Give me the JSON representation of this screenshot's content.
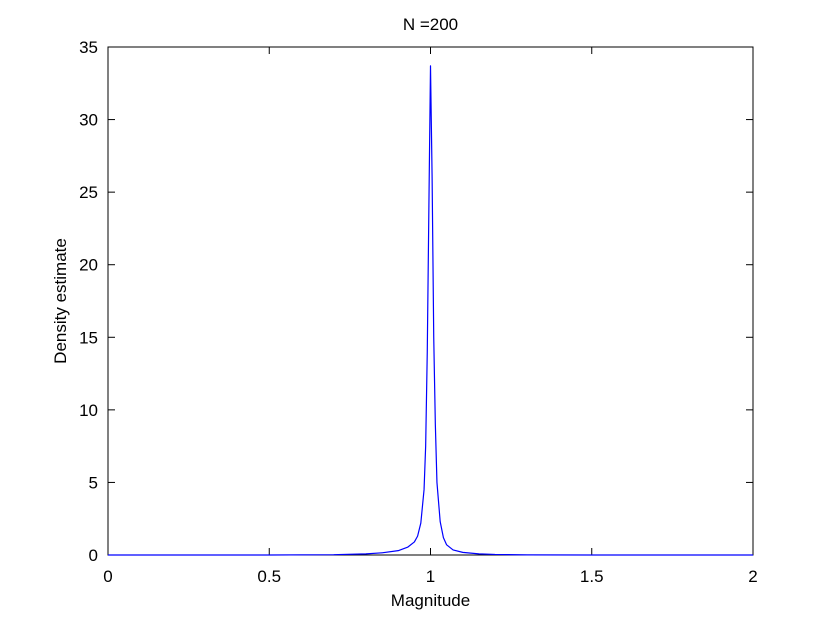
{
  "chart_data": {
    "type": "line",
    "title": "N =200",
    "xlabel": "Magnitude",
    "ylabel": "Density estimate",
    "xlim": [
      0,
      2
    ],
    "ylim": [
      0,
      35
    ],
    "xticks": [
      {
        "value": 0,
        "label": "0"
      },
      {
        "value": 0.5,
        "label": "0.5"
      },
      {
        "value": 1,
        "label": "1"
      },
      {
        "value": 1.5,
        "label": "1.5"
      },
      {
        "value": 2,
        "label": "2"
      }
    ],
    "yticks": [
      {
        "value": 0,
        "label": "0"
      },
      {
        "value": 5,
        "label": "5"
      },
      {
        "value": 10,
        "label": "10"
      },
      {
        "value": 15,
        "label": "15"
      },
      {
        "value": 20,
        "label": "20"
      },
      {
        "value": 25,
        "label": "25"
      },
      {
        "value": 30,
        "label": "30"
      },
      {
        "value": 35,
        "label": "35"
      }
    ],
    "grid": false,
    "series": [
      {
        "color": "#0000ff",
        "x": [
          0,
          0.5,
          0.7,
          0.8,
          0.85,
          0.9,
          0.93,
          0.95,
          0.96,
          0.97,
          0.98,
          0.985,
          0.99,
          0.995,
          1.0,
          1.005,
          1.01,
          1.015,
          1.02,
          1.03,
          1.04,
          1.05,
          1.07,
          1.1,
          1.15,
          1.2,
          1.3,
          1.5,
          2
        ],
        "y": [
          0,
          0,
          0.02,
          0.08,
          0.15,
          0.3,
          0.55,
          0.9,
          1.3,
          2.2,
          4.5,
          7.5,
          14,
          24,
          33.7,
          26,
          15,
          9,
          5,
          2.3,
          1.2,
          0.7,
          0.35,
          0.18,
          0.08,
          0.04,
          0.01,
          0,
          0
        ]
      }
    ]
  }
}
